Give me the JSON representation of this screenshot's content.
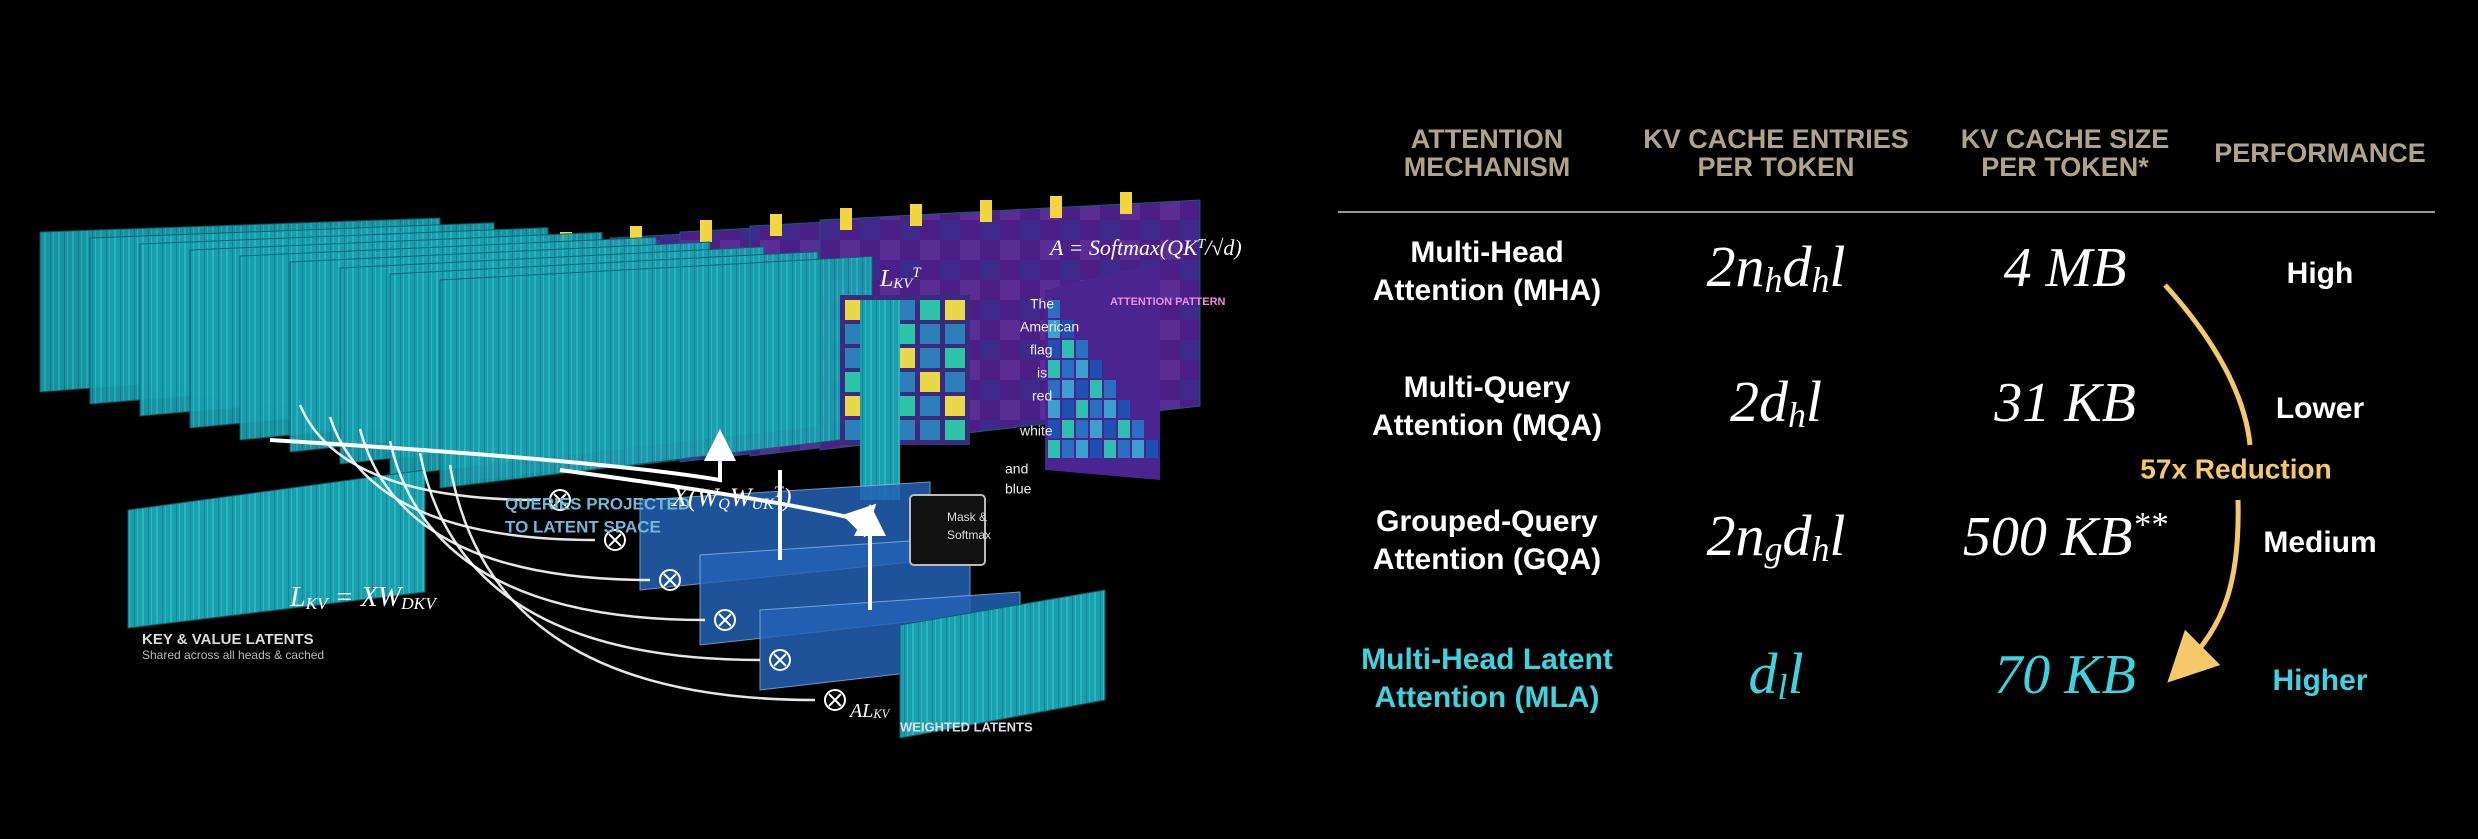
{
  "illustration": {
    "labels": [
      "KEY & VALUE LATENTS",
      "Shared across all heads & cached",
      "WEIGHTED LATENTS",
      "ATTENTION PATTERN",
      "Mask &",
      "Softmax",
      "QUERIES PROJECTED",
      "TO LATENT SPACE",
      "The",
      "American",
      "flag",
      "is",
      "red",
      "white",
      "and",
      "blue"
    ],
    "formulas": [
      [
        {
          "t": "L"
        },
        {
          "sub": "KV"
        },
        {
          "t": " = XW"
        },
        {
          "sub": "DKV"
        }
      ],
      [
        {
          "t": "A = Softmax("
        },
        {
          "t": "QK"
        },
        {
          "sup": "T"
        },
        {
          "t": "/√d)"
        }
      ],
      [
        {
          "t": "X(W"
        },
        {
          "sub": "Q"
        },
        {
          "t": "W"
        },
        {
          "sub": "UK"
        },
        {
          "sup": "T"
        },
        {
          "t": ")"
        }
      ],
      [
        {
          "t": "AL"
        },
        {
          "sub": "KV"
        }
      ],
      [
        {
          "t": "L"
        },
        {
          "sub": "KV"
        },
        {
          "sup": "T"
        }
      ]
    ]
  },
  "table": {
    "headers": [
      [
        "ATTENTION",
        "MECHANISM"
      ],
      [
        "KV CACHE ENTRIES",
        "PER TOKEN"
      ],
      [
        "KV CACHE SIZE",
        "PER TOKEN*"
      ],
      [
        "PERFORMANCE"
      ]
    ],
    "header_color": "#b0a488",
    "rows": [
      {
        "name": [
          "Multi-Head",
          "Attention (MHA)"
        ],
        "entries": [
          {
            "t": "2n"
          },
          {
            "sub": "h"
          },
          {
            "t": "d"
          },
          {
            "sub": "h"
          },
          {
            "t": "l"
          }
        ],
        "size": [
          {
            "t": "4 MB"
          }
        ],
        "performance": "High",
        "color": "#ffffff"
      },
      {
        "name": [
          "Multi-Query",
          "Attention (MQA)"
        ],
        "entries": [
          {
            "t": "2d"
          },
          {
            "sub": "h"
          },
          {
            "t": "l"
          }
        ],
        "size": [
          {
            "t": "31 KB"
          }
        ],
        "performance": "Lower",
        "color": "#ffffff"
      },
      {
        "name": [
          "Grouped-Query",
          "Attention (GQA)"
        ],
        "entries": [
          {
            "t": "2n"
          },
          {
            "sub": "g"
          },
          {
            "t": "d"
          },
          {
            "sub": "h"
          },
          {
            "t": "l"
          }
        ],
        "size": [
          {
            "t": "500 KB"
          },
          {
            "sup": "**"
          }
        ],
        "performance": "Medium",
        "color": "#ffffff"
      },
      {
        "name": [
          "Multi-Head Latent",
          "Attention (MLA)"
        ],
        "entries": [
          {
            "t": "d"
          },
          {
            "sub": "l"
          },
          {
            "t": "l"
          }
        ],
        "size": [
          {
            "t": "70 KB"
          }
        ],
        "performance": "Higher",
        "color": "#3fd3e0"
      }
    ],
    "annotation": {
      "text": "57x Reduction",
      "color": "#f5c86a"
    }
  }
}
